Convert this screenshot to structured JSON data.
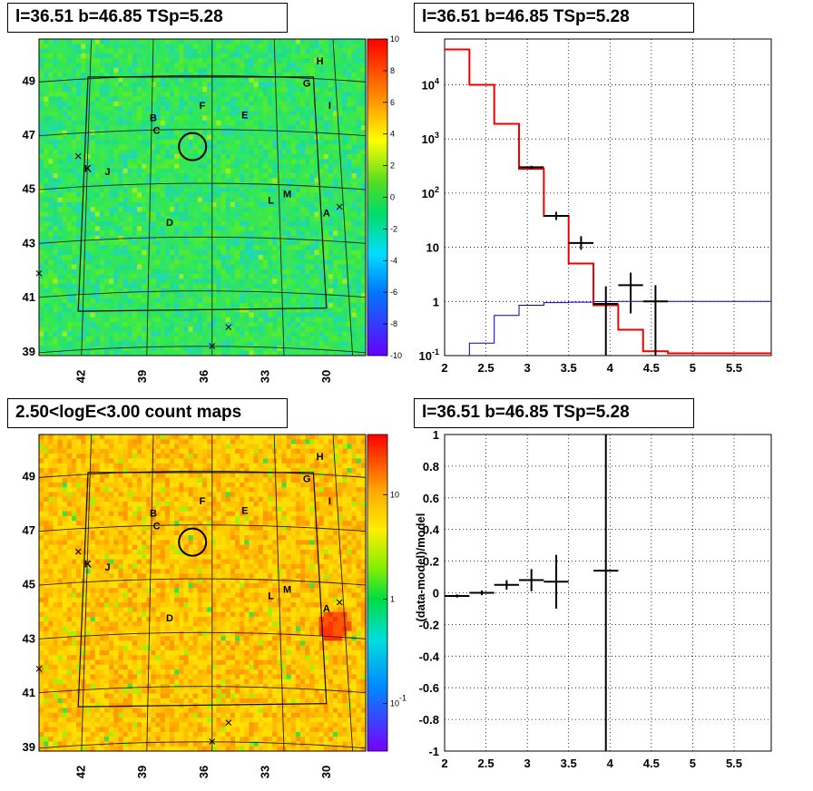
{
  "panels": {
    "tl_title": "l=36.51 b=46.85 TSp=5.28",
    "tr_title": "l=36.51 b=46.85 TSp=5.28",
    "bl_title": "2.50<logE<3.00 count maps",
    "br_title": "l=36.51 b=46.85 TSp=5.28"
  },
  "chart_data": [
    {
      "type": "heatmap",
      "name": "significance map",
      "x_ticks": [
        "42",
        "39",
        "36",
        "33",
        "30"
      ],
      "y_ticks": [
        "49",
        "47",
        "45",
        "43",
        "41",
        "39"
      ],
      "colorbar": {
        "ticks": [
          "10",
          "8",
          "6",
          "4",
          "2",
          "0",
          "-2",
          "-4",
          "-6",
          "-8",
          "-10"
        ],
        "range": [
          -10,
          10
        ]
      },
      "sources": [
        "A",
        "B",
        "C",
        "D",
        "E",
        "F",
        "G",
        "H",
        "I",
        "J",
        "K",
        "L",
        "M"
      ]
    },
    {
      "type": "line",
      "name": "spectrum",
      "ylog": true,
      "x_ticks": [
        "2",
        "2.5",
        "3",
        "3.5",
        "4",
        "4.5",
        "5",
        "5.5"
      ],
      "y_ticks": [
        "10^4",
        "10^3",
        "10^2",
        "10",
        "1",
        "10^-1"
      ],
      "xlim": [
        2,
        5.95
      ],
      "ylim": [
        0.1,
        70000
      ],
      "model_step": {
        "edges": [
          2.0,
          2.3,
          2.6,
          2.9,
          3.2,
          3.5,
          3.8,
          4.1,
          4.4,
          4.7,
          5.95
        ],
        "values": [
          45000,
          10000,
          1900,
          280,
          38,
          5,
          0.85,
          0.3,
          0.12,
          0.11
        ]
      },
      "background_step": {
        "edges": [
          2.3,
          2.6,
          2.9,
          3.2,
          3.5,
          3.8,
          4.1,
          4.4,
          4.7,
          5.95
        ],
        "values": [
          0.17,
          0.55,
          0.85,
          0.95,
          0.97,
          0.99,
          1.0,
          1.0,
          1.0
        ]
      },
      "data_points": [
        {
          "x": 3.05,
          "xerr": 0.15,
          "y": 300,
          "ylo": 280,
          "yhi": 320
        },
        {
          "x": 3.35,
          "xerr": 0.15,
          "y": 38,
          "ylo": 32,
          "yhi": 45
        },
        {
          "x": 3.65,
          "xerr": 0.15,
          "y": 12,
          "ylo": 9,
          "yhi": 16
        },
        {
          "x": 3.95,
          "xerr": 0.15,
          "y": 0.9,
          "ylo": 0.1,
          "yhi": 1.9
        },
        {
          "x": 4.25,
          "xerr": 0.15,
          "y": 2,
          "ylo": 0.6,
          "yhi": 3.4
        },
        {
          "x": 4.55,
          "xerr": 0.15,
          "y": 1,
          "ylo": 0.1,
          "yhi": 2.0
        }
      ]
    },
    {
      "type": "heatmap",
      "name": "count map",
      "x_ticks": [
        "42",
        "39",
        "36",
        "33",
        "30"
      ],
      "y_ticks": [
        "49",
        "47",
        "45",
        "43",
        "41",
        "39"
      ],
      "colorbar": {
        "ticks": [
          "10",
          "1",
          "10^-1"
        ],
        "log": true
      },
      "sources": [
        "A",
        "B",
        "C",
        "D",
        "E",
        "F",
        "G",
        "H",
        "I",
        "J",
        "K",
        "L",
        "M"
      ]
    },
    {
      "type": "scatter",
      "name": "residuals",
      "ylabel": "(data-model)/model",
      "x_ticks": [
        "2",
        "2.5",
        "3",
        "3.5",
        "4",
        "4.5",
        "5",
        "5.5"
      ],
      "y_ticks": [
        "1",
        "0.8",
        "0.6",
        "0.4",
        "0.2",
        "0",
        "-0.2",
        "-0.4",
        "-0.6",
        "-0.8",
        "-1"
      ],
      "xlim": [
        2,
        5.95
      ],
      "ylim": [
        -1,
        1
      ],
      "points": [
        {
          "x": 2.15,
          "xerr": 0.15,
          "y": -0.02,
          "yerr": 0.01
        },
        {
          "x": 2.45,
          "xerr": 0.15,
          "y": 0.0,
          "yerr": 0.015
        },
        {
          "x": 2.75,
          "xerr": 0.15,
          "y": 0.05,
          "yerr": 0.03
        },
        {
          "x": 3.05,
          "xerr": 0.15,
          "y": 0.08,
          "yerr": 0.07
        },
        {
          "x": 3.35,
          "xerr": 0.15,
          "y": 0.07,
          "yerr": 0.17
        },
        {
          "x": 3.95,
          "xerr": 0.15,
          "y": 0.14,
          "yerr": 1.2
        }
      ]
    }
  ]
}
